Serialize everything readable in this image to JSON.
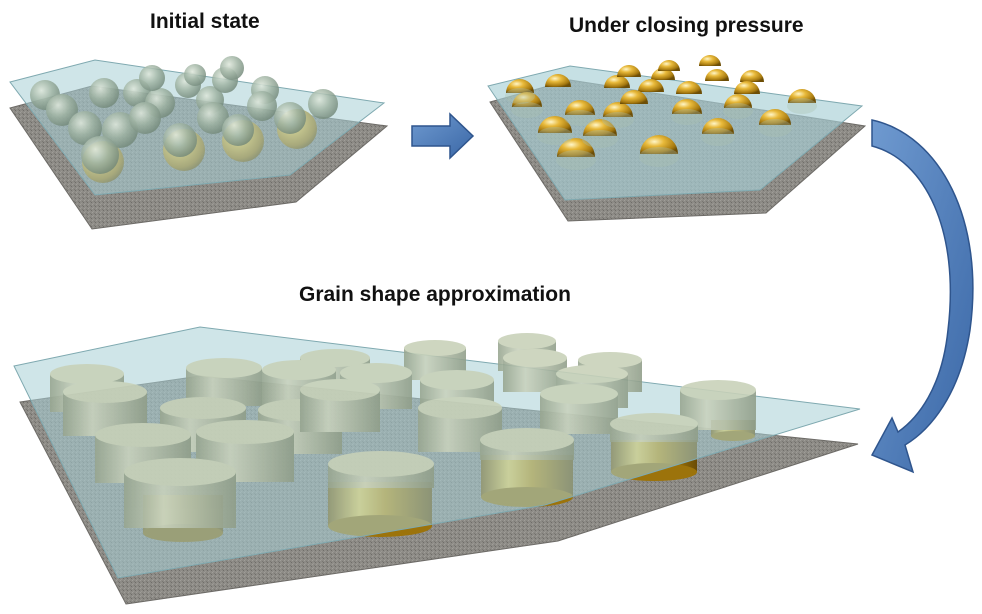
{
  "titles": {
    "initial": "Initial state",
    "pressure": "Under closing pressure",
    "approximation": "Grain shape approximation"
  },
  "colors": {
    "substrate": "#8c8a85",
    "glass": "#a9cfd4",
    "gold": "#d4a020",
    "grain": "#aebdac",
    "arrow": "#4f7fbc"
  },
  "panels": [
    {
      "name": "initial-state-panel",
      "grain_shape": "sphere"
    },
    {
      "name": "closing-pressure-panel",
      "grain_shape": "hemisphere"
    },
    {
      "name": "grain-approximation-panel",
      "grain_shape": "cylinder"
    }
  ],
  "arrows": [
    {
      "name": "arrow-initial-to-pressure",
      "shape": "straight"
    },
    {
      "name": "arrow-pressure-to-approximation",
      "shape": "curved"
    }
  ]
}
